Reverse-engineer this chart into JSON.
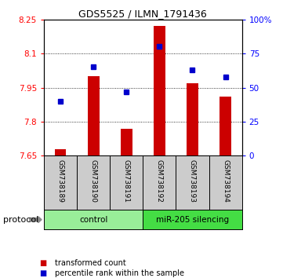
{
  "title": "GDS5525 / ILMN_1791436",
  "samples": [
    "GSM738189",
    "GSM738190",
    "GSM738191",
    "GSM738192",
    "GSM738193",
    "GSM738194"
  ],
  "red_values": [
    7.68,
    8.0,
    7.77,
    8.22,
    7.97,
    7.91
  ],
  "blue_values": [
    40,
    65,
    47,
    80,
    63,
    58
  ],
  "baseline": 7.65,
  "ylim_left": [
    7.65,
    8.25
  ],
  "ylim_right": [
    0,
    100
  ],
  "yticks_left": [
    7.65,
    7.8,
    7.95,
    8.1,
    8.25
  ],
  "yticks_right": [
    0,
    25,
    50,
    75,
    100
  ],
  "ytick_labels_left": [
    "7.65",
    "7.8",
    "7.95",
    "8.1",
    "8.25"
  ],
  "ytick_labels_right": [
    "0",
    "25",
    "50",
    "75",
    "100%"
  ],
  "bar_color": "#cc0000",
  "dot_color": "#0000cc",
  "bar_width": 0.35,
  "protocol_bg_control": "#99ee99",
  "protocol_bg_silencing": "#44dd44",
  "sample_box_bg": "#cccccc",
  "legend_items": [
    {
      "label": "transformed count",
      "color": "#cc0000"
    },
    {
      "label": "percentile rank within the sample",
      "color": "#0000cc"
    }
  ]
}
